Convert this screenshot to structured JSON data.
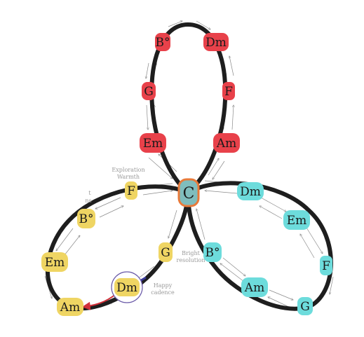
{
  "colors": {
    "red": "#e8414a",
    "cyan": "#6ddcdc",
    "yellow": "#efd563",
    "loop": "#1e1e1e",
    "center_fill": "#7fbdbd",
    "center_border": "#e87a3a",
    "highlight_ring": "#6a5aa8",
    "highlight_arrow": "#d0303a"
  },
  "center": {
    "label": "C"
  },
  "loops": [
    {
      "id": "top",
      "color": "red",
      "chords": [
        "B°",
        "Dm",
        "G",
        "F",
        "Em",
        "Am"
      ]
    },
    {
      "id": "right",
      "color": "cyan",
      "chords": [
        "Dm",
        "Em",
        "F",
        "B°",
        "Am",
        "G"
      ]
    },
    {
      "id": "left",
      "color": "yellow",
      "chords": [
        "F",
        "B°",
        "Em",
        "Am",
        "G",
        "Dm"
      ]
    }
  ],
  "annotations": {
    "exploration": [
      "Exploration",
      "Warmth"
    ],
    "side_note": [
      "t",
      "ns"
    ],
    "bright": [
      "Bright",
      "resolution"
    ],
    "happy": [
      "Happy",
      "cadence"
    ]
  }
}
